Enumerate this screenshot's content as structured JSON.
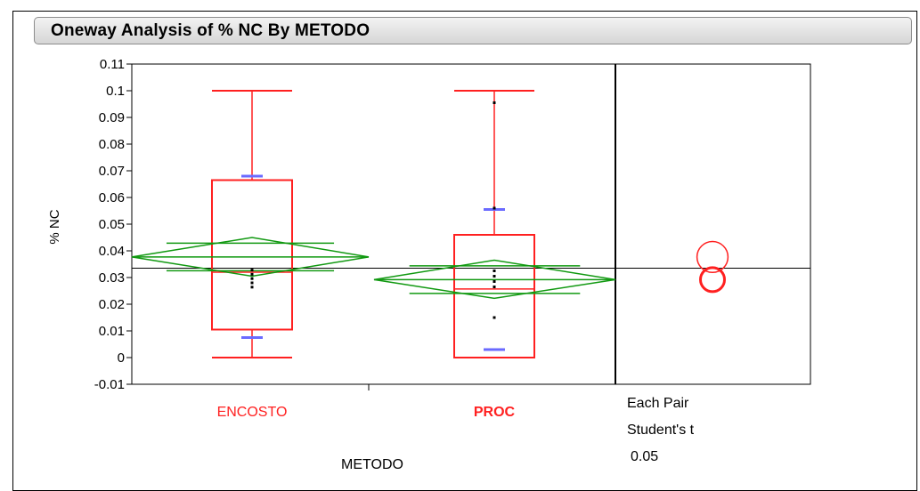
{
  "title": "Oneway Analysis of % NC By METODO",
  "colors": {
    "box": "#ff2020",
    "diamond": "#119911",
    "quantile": "#6a6aff",
    "circle": "#ff2020",
    "axis": "#000000",
    "grand_mean": "#000000"
  },
  "comparison_panel": {
    "line1": "Each Pair",
    "line2": "Student's t",
    "line3": " 0.05",
    "circles": [
      {
        "center": 0.0377,
        "radius": 0.0058,
        "bold": false
      },
      {
        "center": 0.0292,
        "radius": 0.0045,
        "bold": true
      }
    ]
  },
  "chart_data": {
    "type": "box",
    "ylabel": "% NC",
    "xlabel": "METODO",
    "ylim": [
      -0.01,
      0.11
    ],
    "yticks": [
      "0.11",
      "0.1",
      "0.09",
      "0.08",
      "0.07",
      "0.06",
      "0.05",
      "0.04",
      "0.03",
      "0.02",
      "0.01",
      "0",
      "-0.01"
    ],
    "grand_mean": 0.0335,
    "categories": [
      "ENCOSTO",
      "PROC"
    ],
    "groups": [
      {
        "name": "ENCOSTO",
        "label_bold": false,
        "whisker_low": 0.0,
        "q1": 0.0105,
        "median": 0.032,
        "q3": 0.0665,
        "whisker_high": 0.1,
        "mean": 0.0377,
        "ci_low": 0.0305,
        "ci_high": 0.045,
        "quantile_marks": [
          0.068,
          0.0075
        ],
        "points": [
          0.0328,
          0.0312,
          0.0296,
          0.028,
          0.0264
        ]
      },
      {
        "name": "PROC",
        "label_bold": true,
        "whisker_low": 0.0,
        "q1": 0.0,
        "median": 0.0257,
        "q3": 0.046,
        "whisker_high": 0.1,
        "mean": 0.0292,
        "ci_low": 0.0222,
        "ci_high": 0.0365,
        "quantile_marks": [
          0.0555,
          0.003
        ],
        "points": [
          0.0955,
          0.056,
          0.0325,
          0.0305,
          0.0285,
          0.0265,
          0.015
        ]
      }
    ]
  }
}
